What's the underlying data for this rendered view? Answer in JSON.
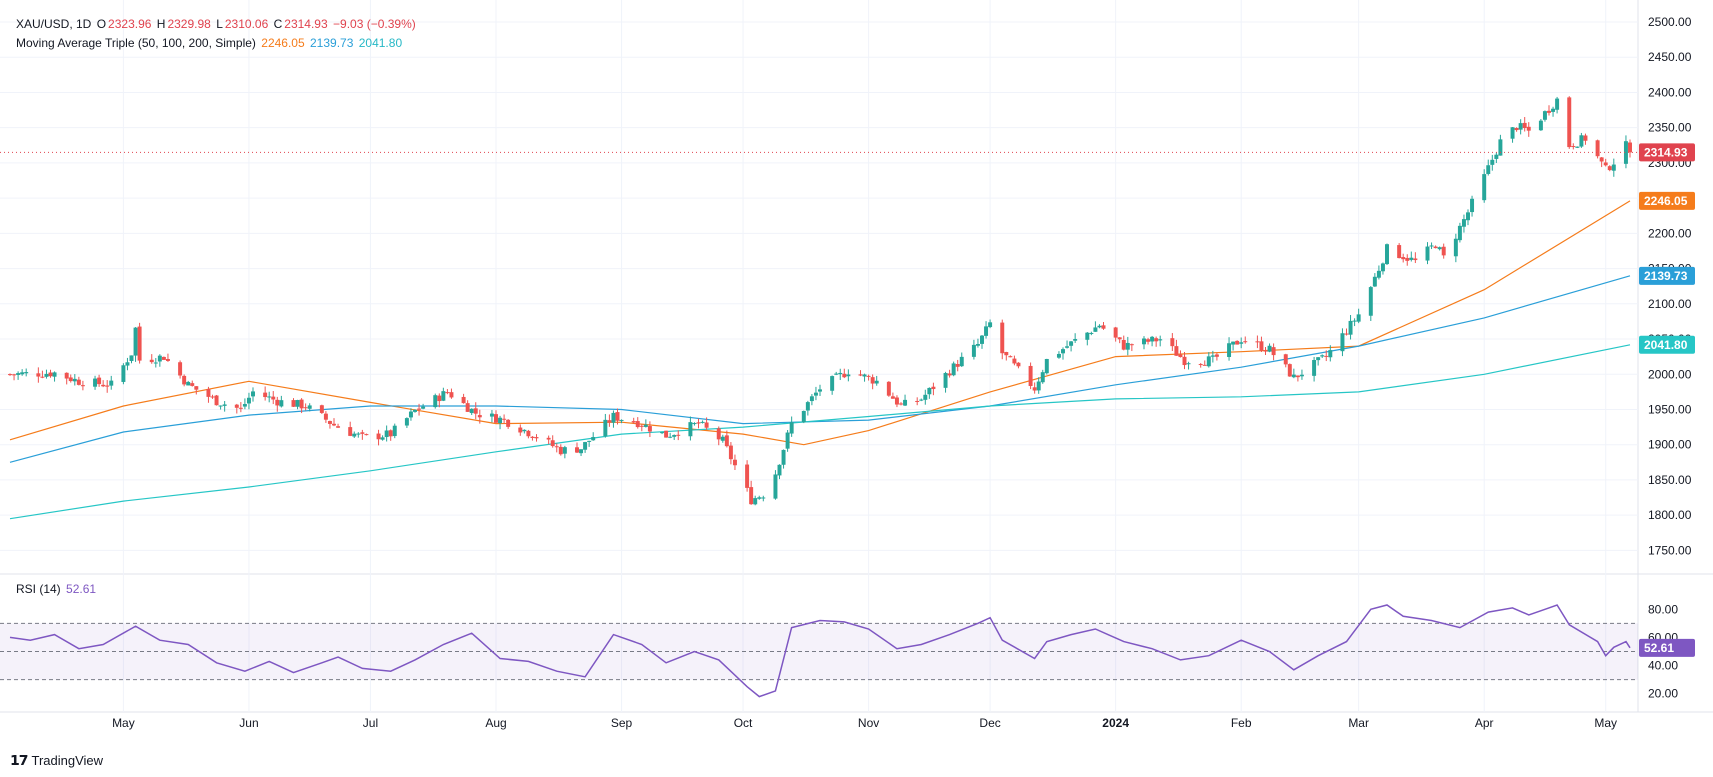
{
  "header": {
    "symbol": "XAU/USD, 1D",
    "o_label": "O",
    "o": "2323.96",
    "h_label": "H",
    "h": "2329.98",
    "l_label": "L",
    "l": "2310.06",
    "c_label": "C",
    "c": "2314.93",
    "change": "−9.03 (−0.39%)",
    "ma_label": "Moving Average Triple (50, 100, 200, Simple)",
    "ma50": "2246.05",
    "ma100": "2139.73",
    "ma200": "2041.80",
    "rsi_label": "RSI (14)",
    "rsi_value": "52.61"
  },
  "brand": "TradingView",
  "colors": {
    "up": "#26a69a",
    "down": "#ef5350",
    "ma50": "#f57c1b",
    "ma100": "#2a9fd8",
    "ma200": "#26c6c6",
    "rsi": "#7e57c2",
    "price_line": "#e0434e"
  },
  "chart_data": [
    {
      "type": "candlestick",
      "title": "XAU/USD, 1D",
      "ylim": [
        1725,
        2500
      ],
      "y_ticks": [
        1750,
        1800,
        1850,
        1900,
        1950,
        2000,
        2050,
        2100,
        2150,
        2200,
        2250,
        2300,
        2350,
        2400,
        2450,
        2500
      ],
      "x_ticks": [
        "May",
        "Jun",
        "Jul",
        "Aug",
        "Sep",
        "Oct",
        "Nov",
        "Dec",
        "2024",
        "Feb",
        "Mar",
        "Apr",
        "May"
      ],
      "x_tick_dates": [
        "2023-05-01",
        "2023-06-01",
        "2023-07-01",
        "2023-08-01",
        "2023-09-01",
        "2023-10-01",
        "2023-11-01",
        "2023-12-01",
        "2024-01-01",
        "2024-02-01",
        "2024-03-01",
        "2024-04-01",
        "2024-05-01"
      ],
      "date_range": [
        "2023-04-03",
        "2024-05-07"
      ],
      "last_price": 2314.93,
      "price_axis_labels": [
        "2314.93",
        "2246.05",
        "2139.73",
        "2041.80"
      ],
      "price_path": [
        [
          "2023-04-03",
          2000
        ],
        [
          "2023-04-14",
          2002
        ],
        [
          "2023-04-20",
          1990
        ],
        [
          "2023-04-28",
          1985
        ],
        [
          "2023-05-03",
          2030
        ],
        [
          "2023-05-04",
          2065
        ],
        [
          "2023-05-05",
          2020
        ],
        [
          "2023-05-11",
          2025
        ],
        [
          "2023-05-17",
          1985
        ],
        [
          "2023-05-24",
          1962
        ],
        [
          "2023-05-30",
          1950
        ],
        [
          "2023-06-02",
          1975
        ],
        [
          "2023-06-08",
          1962
        ],
        [
          "2023-06-15",
          1955
        ],
        [
          "2023-06-22",
          1928
        ],
        [
          "2023-06-29",
          1910
        ],
        [
          "2023-07-06",
          1915
        ],
        [
          "2023-07-12",
          1948
        ],
        [
          "2023-07-20",
          1975
        ],
        [
          "2023-07-27",
          1945
        ],
        [
          "2023-08-03",
          1935
        ],
        [
          "2023-08-10",
          1915
        ],
        [
          "2023-08-17",
          1892
        ],
        [
          "2023-08-22",
          1895
        ],
        [
          "2023-08-30",
          1940
        ],
        [
          "2023-09-05",
          1932
        ],
        [
          "2023-09-12",
          1913
        ],
        [
          "2023-09-20",
          1930
        ],
        [
          "2023-09-26",
          1905
        ],
        [
          "2023-09-29",
          1870
        ],
        [
          "2023-10-03",
          1822
        ],
        [
          "2023-10-06",
          1830
        ],
        [
          "2023-10-09",
          1860
        ],
        [
          "2023-10-13",
          1930
        ],
        [
          "2023-10-20",
          1980
        ],
        [
          "2023-10-27",
          2005
        ],
        [
          "2023-11-03",
          1990
        ],
        [
          "2023-11-09",
          1955
        ],
        [
          "2023-11-14",
          1965
        ],
        [
          "2023-11-21",
          2005
        ],
        [
          "2023-11-28",
          2042
        ],
        [
          "2023-12-01",
          2072
        ],
        [
          "2023-12-04",
          2030
        ],
        [
          "2023-12-12",
          1980
        ],
        [
          "2023-12-15",
          2020
        ],
        [
          "2023-12-20",
          2040
        ],
        [
          "2023-12-28",
          2070
        ],
        [
          "2024-01-03",
          2040
        ],
        [
          "2024-01-12",
          2050
        ],
        [
          "2024-01-18",
          2020
        ],
        [
          "2024-01-25",
          2020
        ],
        [
          "2024-02-01",
          2050
        ],
        [
          "2024-02-08",
          2035
        ],
        [
          "2024-02-14",
          1995
        ],
        [
          "2024-02-22",
          2025
        ],
        [
          "2024-03-01",
          2085
        ],
        [
          "2024-03-06",
          2150
        ],
        [
          "2024-03-08",
          2178
        ],
        [
          "2024-03-15",
          2160
        ],
        [
          "2024-03-20",
          2185
        ],
        [
          "2024-03-22",
          2165
        ],
        [
          "2024-03-28",
          2230
        ],
        [
          "2024-04-05",
          2330
        ],
        [
          "2024-04-09",
          2352
        ],
        [
          "2024-04-12",
          2345
        ],
        [
          "2024-04-19",
          2390
        ],
        [
          "2024-04-22",
          2325
        ],
        [
          "2024-04-26",
          2335
        ],
        [
          "2024-05-01",
          2290
        ],
        [
          "2024-05-03",
          2302
        ],
        [
          "2024-05-06",
          2324
        ],
        [
          "2024-05-07",
          2314.93
        ]
      ],
      "series": [
        {
          "name": "MA 50",
          "value": 2246.05,
          "points": [
            [
              "2023-04-03",
              1907
            ],
            [
              "2023-05-01",
              1955
            ],
            [
              "2023-06-01",
              1990
            ],
            [
              "2023-07-01",
              1960
            ],
            [
              "2023-08-01",
              1930
            ],
            [
              "2023-09-01",
              1932
            ],
            [
              "2023-10-01",
              1915
            ],
            [
              "2023-10-16",
              1900
            ],
            [
              "2023-11-01",
              1920
            ],
            [
              "2023-12-01",
              1975
            ],
            [
              "2024-01-01",
              2025
            ],
            [
              "2024-02-01",
              2032
            ],
            [
              "2024-03-01",
              2040
            ],
            [
              "2024-04-01",
              2120
            ],
            [
              "2024-05-07",
              2246.05
            ]
          ]
        },
        {
          "name": "MA 100",
          "value": 2139.73,
          "points": [
            [
              "2023-04-03",
              1875
            ],
            [
              "2023-05-01",
              1918
            ],
            [
              "2023-06-01",
              1942
            ],
            [
              "2023-07-01",
              1955
            ],
            [
              "2023-08-01",
              1955
            ],
            [
              "2023-09-01",
              1950
            ],
            [
              "2023-10-01",
              1930
            ],
            [
              "2023-11-01",
              1935
            ],
            [
              "2023-12-01",
              1955
            ],
            [
              "2024-01-01",
              1985
            ],
            [
              "2024-02-01",
              2010
            ],
            [
              "2024-03-01",
              2040
            ],
            [
              "2024-04-01",
              2080
            ],
            [
              "2024-05-07",
              2139.73
            ]
          ]
        },
        {
          "name": "MA 200",
          "value": 2041.8,
          "points": [
            [
              "2023-04-03",
              1795
            ],
            [
              "2023-05-01",
              1820
            ],
            [
              "2023-06-01",
              1840
            ],
            [
              "2023-07-01",
              1863
            ],
            [
              "2023-08-01",
              1890
            ],
            [
              "2023-09-01",
              1915
            ],
            [
              "2023-10-01",
              1925
            ],
            [
              "2023-11-01",
              1940
            ],
            [
              "2023-12-01",
              1955
            ],
            [
              "2024-01-01",
              1965
            ],
            [
              "2024-02-01",
              1968
            ],
            [
              "2024-03-01",
              1975
            ],
            [
              "2024-04-01",
              2000
            ],
            [
              "2024-05-07",
              2041.8
            ]
          ]
        }
      ]
    },
    {
      "type": "line",
      "title": "RSI (14)",
      "ylim": [
        12,
        88
      ],
      "y_ticks": [
        20,
        40,
        60,
        80
      ],
      "levels": [
        70,
        50,
        30
      ],
      "last_value": 52.61,
      "rsi_points": [
        [
          "2023-04-03",
          60
        ],
        [
          "2023-04-08",
          58
        ],
        [
          "2023-04-14",
          62
        ],
        [
          "2023-04-20",
          52
        ],
        [
          "2023-04-26",
          55
        ],
        [
          "2023-05-04",
          68
        ],
        [
          "2023-05-10",
          58
        ],
        [
          "2023-05-17",
          55
        ],
        [
          "2023-05-24",
          42
        ],
        [
          "2023-05-31",
          36
        ],
        [
          "2023-06-06",
          43
        ],
        [
          "2023-06-12",
          35
        ],
        [
          "2023-06-19",
          42
        ],
        [
          "2023-06-23",
          46
        ],
        [
          "2023-06-29",
          38
        ],
        [
          "2023-07-06",
          36
        ],
        [
          "2023-07-12",
          44
        ],
        [
          "2023-07-19",
          55
        ],
        [
          "2023-07-26",
          63
        ],
        [
          "2023-08-02",
          45
        ],
        [
          "2023-08-09",
          43
        ],
        [
          "2023-08-16",
          36
        ],
        [
          "2023-08-23",
          32
        ],
        [
          "2023-08-30",
          62
        ],
        [
          "2023-09-06",
          55
        ],
        [
          "2023-09-12",
          42
        ],
        [
          "2023-09-19",
          50
        ],
        [
          "2023-09-25",
          44
        ],
        [
          "2023-10-02",
          25
        ],
        [
          "2023-10-05",
          18
        ],
        [
          "2023-10-09",
          22
        ],
        [
          "2023-10-13",
          67
        ],
        [
          "2023-10-20",
          72
        ],
        [
          "2023-10-26",
          71
        ],
        [
          "2023-11-01",
          66
        ],
        [
          "2023-11-08",
          52
        ],
        [
          "2023-11-14",
          55
        ],
        [
          "2023-11-21",
          62
        ],
        [
          "2023-11-28",
          70
        ],
        [
          "2023-12-01",
          74
        ],
        [
          "2023-12-04",
          58
        ],
        [
          "2023-12-12",
          45
        ],
        [
          "2023-12-15",
          57
        ],
        [
          "2023-12-21",
          62
        ],
        [
          "2023-12-27",
          66
        ],
        [
          "2024-01-03",
          57
        ],
        [
          "2024-01-10",
          52
        ],
        [
          "2024-01-17",
          44
        ],
        [
          "2024-01-24",
          47
        ],
        [
          "2024-02-01",
          58
        ],
        [
          "2024-02-08",
          50
        ],
        [
          "2024-02-14",
          37
        ],
        [
          "2024-02-20",
          47
        ],
        [
          "2024-02-27",
          57
        ],
        [
          "2024-03-04",
          80
        ],
        [
          "2024-03-08",
          83
        ],
        [
          "2024-03-12",
          75
        ],
        [
          "2024-03-19",
          72
        ],
        [
          "2024-03-26",
          67
        ],
        [
          "2024-04-02",
          78
        ],
        [
          "2024-04-08",
          81
        ],
        [
          "2024-04-12",
          76
        ],
        [
          "2024-04-16",
          80
        ],
        [
          "2024-04-19",
          83
        ],
        [
          "2024-04-22",
          69
        ],
        [
          "2024-04-29",
          57
        ],
        [
          "2024-05-01",
          47
        ],
        [
          "2024-05-03",
          53
        ],
        [
          "2024-05-06",
          57
        ],
        [
          "2024-05-07",
          52.61
        ]
      ]
    }
  ]
}
